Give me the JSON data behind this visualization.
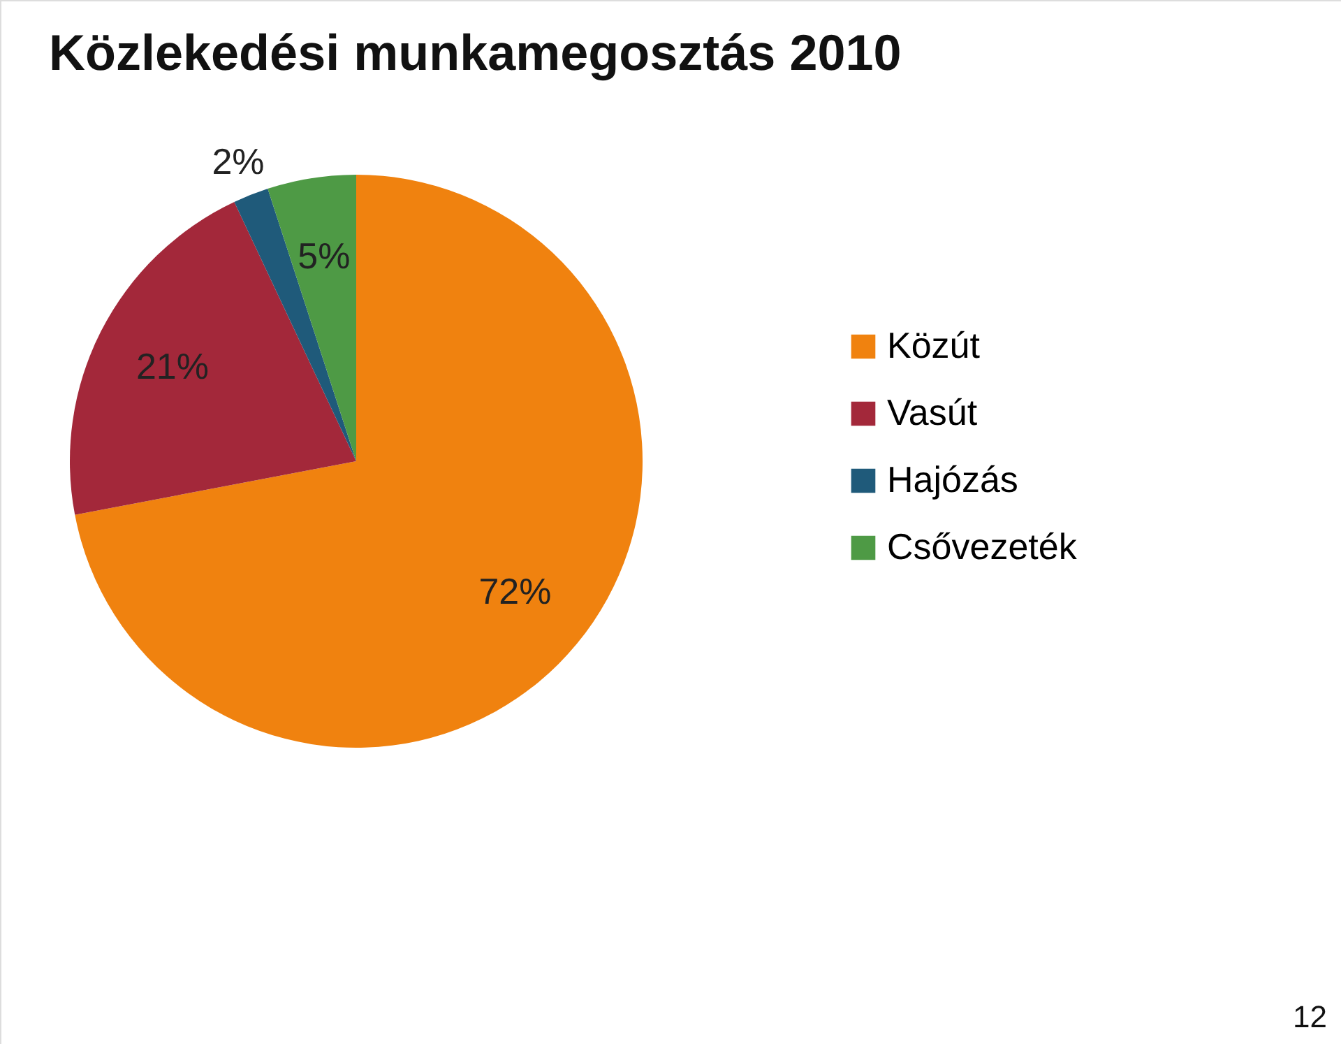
{
  "chart_data": {
    "type": "pie",
    "title": "Közlekedési munkamegosztás 2010",
    "categories": [
      "Közút",
      "Vasút",
      "Hajózás",
      "Csővezeték"
    ],
    "values": [
      72,
      21,
      2,
      5
    ],
    "colors": [
      "#f0820f",
      "#a3283a",
      "#1f5a7a",
      "#4e9a45"
    ],
    "value_labels": [
      "72%",
      "21%",
      "2%",
      "5%"
    ],
    "legend": "right",
    "annotations": [
      "12"
    ]
  }
}
